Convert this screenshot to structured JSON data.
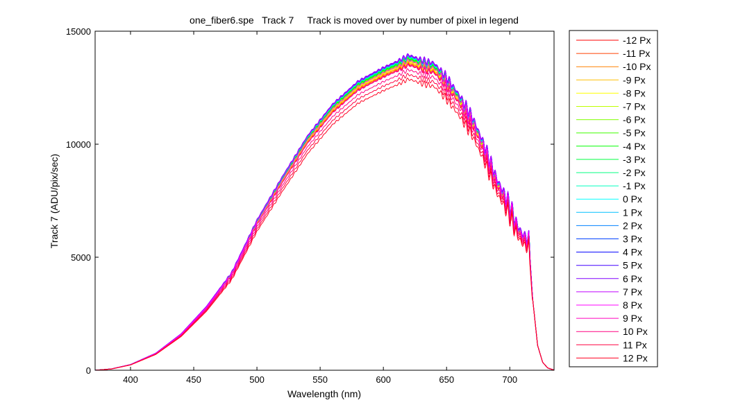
{
  "figure": {
    "background": "#ffffff"
  },
  "chart_data": {
    "type": "line",
    "title": "one_fiber6.spe   Track 7     Track is moved over by number of pixel in legend",
    "xlabel": "Wavelength (nm)",
    "ylabel": "Track 7 (ADU/pix/sec)",
    "xlim": [
      372,
      735
    ],
    "ylim": [
      0,
      15000
    ],
    "xticks": [
      400,
      450,
      500,
      550,
      600,
      650,
      700
    ],
    "yticks": [
      0,
      5000,
      10000,
      15000
    ],
    "xtick_labels": [
      "400",
      "450",
      "500",
      "550",
      "600",
      "650",
      "700"
    ],
    "ytick_labels": [
      "0",
      "5000",
      "10000",
      "15000"
    ],
    "grid": false,
    "legend_position": "outside-right",
    "base_profile": {
      "x": [
        372,
        385,
        400,
        420,
        440,
        460,
        480,
        500,
        520,
        540,
        560,
        580,
        600,
        610,
        620,
        630,
        640,
        650,
        660,
        670,
        680,
        690,
        700,
        705,
        710,
        715,
        718,
        722,
        726,
        730,
        735
      ],
      "y": [
        0,
        60,
        250,
        750,
        1600,
        2800,
        4300,
        6600,
        8500,
        10300,
        11700,
        12700,
        13300,
        13550,
        13850,
        13650,
        13500,
        12900,
        12100,
        11200,
        9900,
        8400,
        7300,
        6500,
        6000,
        5800,
        3200,
        1100,
        350,
        100,
        10
      ]
    },
    "series": [
      {
        "name": "-12 Px",
        "color": "#ff0000",
        "scale": 0.975
      },
      {
        "name": "-11 Px",
        "color": "#ff4000",
        "scale": 0.978
      },
      {
        "name": "-10 Px",
        "color": "#ff8000",
        "scale": 0.981
      },
      {
        "name": "-9 Px",
        "color": "#ffbf00",
        "scale": 0.984
      },
      {
        "name": "-8 Px",
        "color": "#ffff00",
        "scale": 0.987
      },
      {
        "name": "-7 Px",
        "color": "#bfff00",
        "scale": 0.99
      },
      {
        "name": "-6 Px",
        "color": "#80ff00",
        "scale": 0.992
      },
      {
        "name": "-5 Px",
        "color": "#40ff00",
        "scale": 0.994
      },
      {
        "name": "-4 Px",
        "color": "#00ff00",
        "scale": 0.996
      },
      {
        "name": "-3 Px",
        "color": "#00ff40",
        "scale": 0.998
      },
      {
        "name": "-2 Px",
        "color": "#00ff80",
        "scale": 1.0
      },
      {
        "name": "-1 Px",
        "color": "#00ffbf",
        "scale": 1.001
      },
      {
        "name": "0 Px",
        "color": "#00ffff",
        "scale": 1.002
      },
      {
        "name": "1 Px",
        "color": "#00bfff",
        "scale": 1.003
      },
      {
        "name": "2 Px",
        "color": "#0080ff",
        "scale": 1.004
      },
      {
        "name": "3 Px",
        "color": "#0040ff",
        "scale": 1.005
      },
      {
        "name": "4 Px",
        "color": "#0000ff",
        "scale": 1.006
      },
      {
        "name": "5 Px",
        "color": "#4000ff",
        "scale": 1.007
      },
      {
        "name": "6 Px",
        "color": "#8000ff",
        "scale": 1.008
      },
      {
        "name": "7 Px",
        "color": "#bf00ff",
        "scale": 1.005
      },
      {
        "name": "8 Px",
        "color": "#ff00ff",
        "scale": 0.99
      },
      {
        "name": "9 Px",
        "color": "#ff00bf",
        "scale": 0.975
      },
      {
        "name": "10 Px",
        "color": "#ff0080",
        "scale": 0.96
      },
      {
        "name": "11 Px",
        "color": "#ff0040",
        "scale": 0.945
      },
      {
        "name": "12 Px",
        "color": "#ff0020",
        "scale": 0.93
      }
    ]
  }
}
